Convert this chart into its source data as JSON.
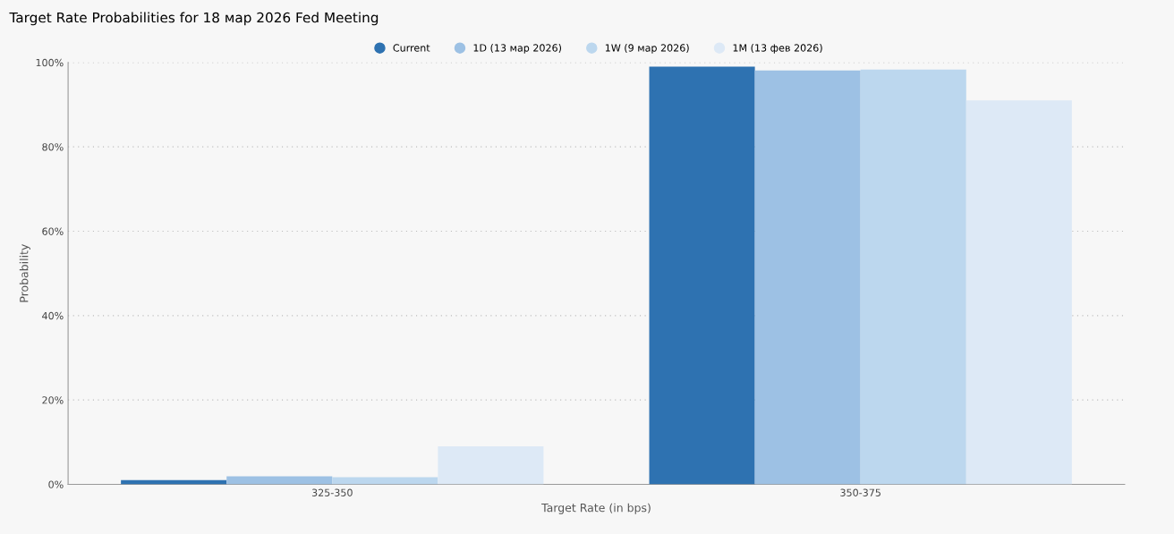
{
  "chart_data": {
    "type": "bar",
    "title": "Target Rate Probabilities for 18 мар 2026 Fed Meeting",
    "xlabel": "Target Rate (in bps)",
    "ylabel": "Probability",
    "categories": [
      "325-350",
      "350-375"
    ],
    "series": [
      {
        "name": "Current",
        "color": "#2e72b1",
        "values": [
          1.0,
          99.0
        ]
      },
      {
        "name": "1D (13 мар 2026)",
        "color": "#9dc1e4",
        "values": [
          1.9,
          98.1
        ]
      },
      {
        "name": "1W (9 мар 2026)",
        "color": "#bcd7ee",
        "values": [
          1.7,
          98.3
        ]
      },
      {
        "name": "1M (13 фев 2026)",
        "color": "#dde9f6",
        "values": [
          9.0,
          91.0
        ]
      }
    ],
    "ylim": [
      0,
      100
    ],
    "yticks": [
      {
        "value": 0,
        "label": "0%"
      },
      {
        "value": 20,
        "label": "20%"
      },
      {
        "value": 40,
        "label": "40%"
      },
      {
        "value": 60,
        "label": "60%"
      },
      {
        "value": 80,
        "label": "80%"
      },
      {
        "value": 100,
        "label": "100%"
      }
    ],
    "grid": "y",
    "legend": "top"
  }
}
